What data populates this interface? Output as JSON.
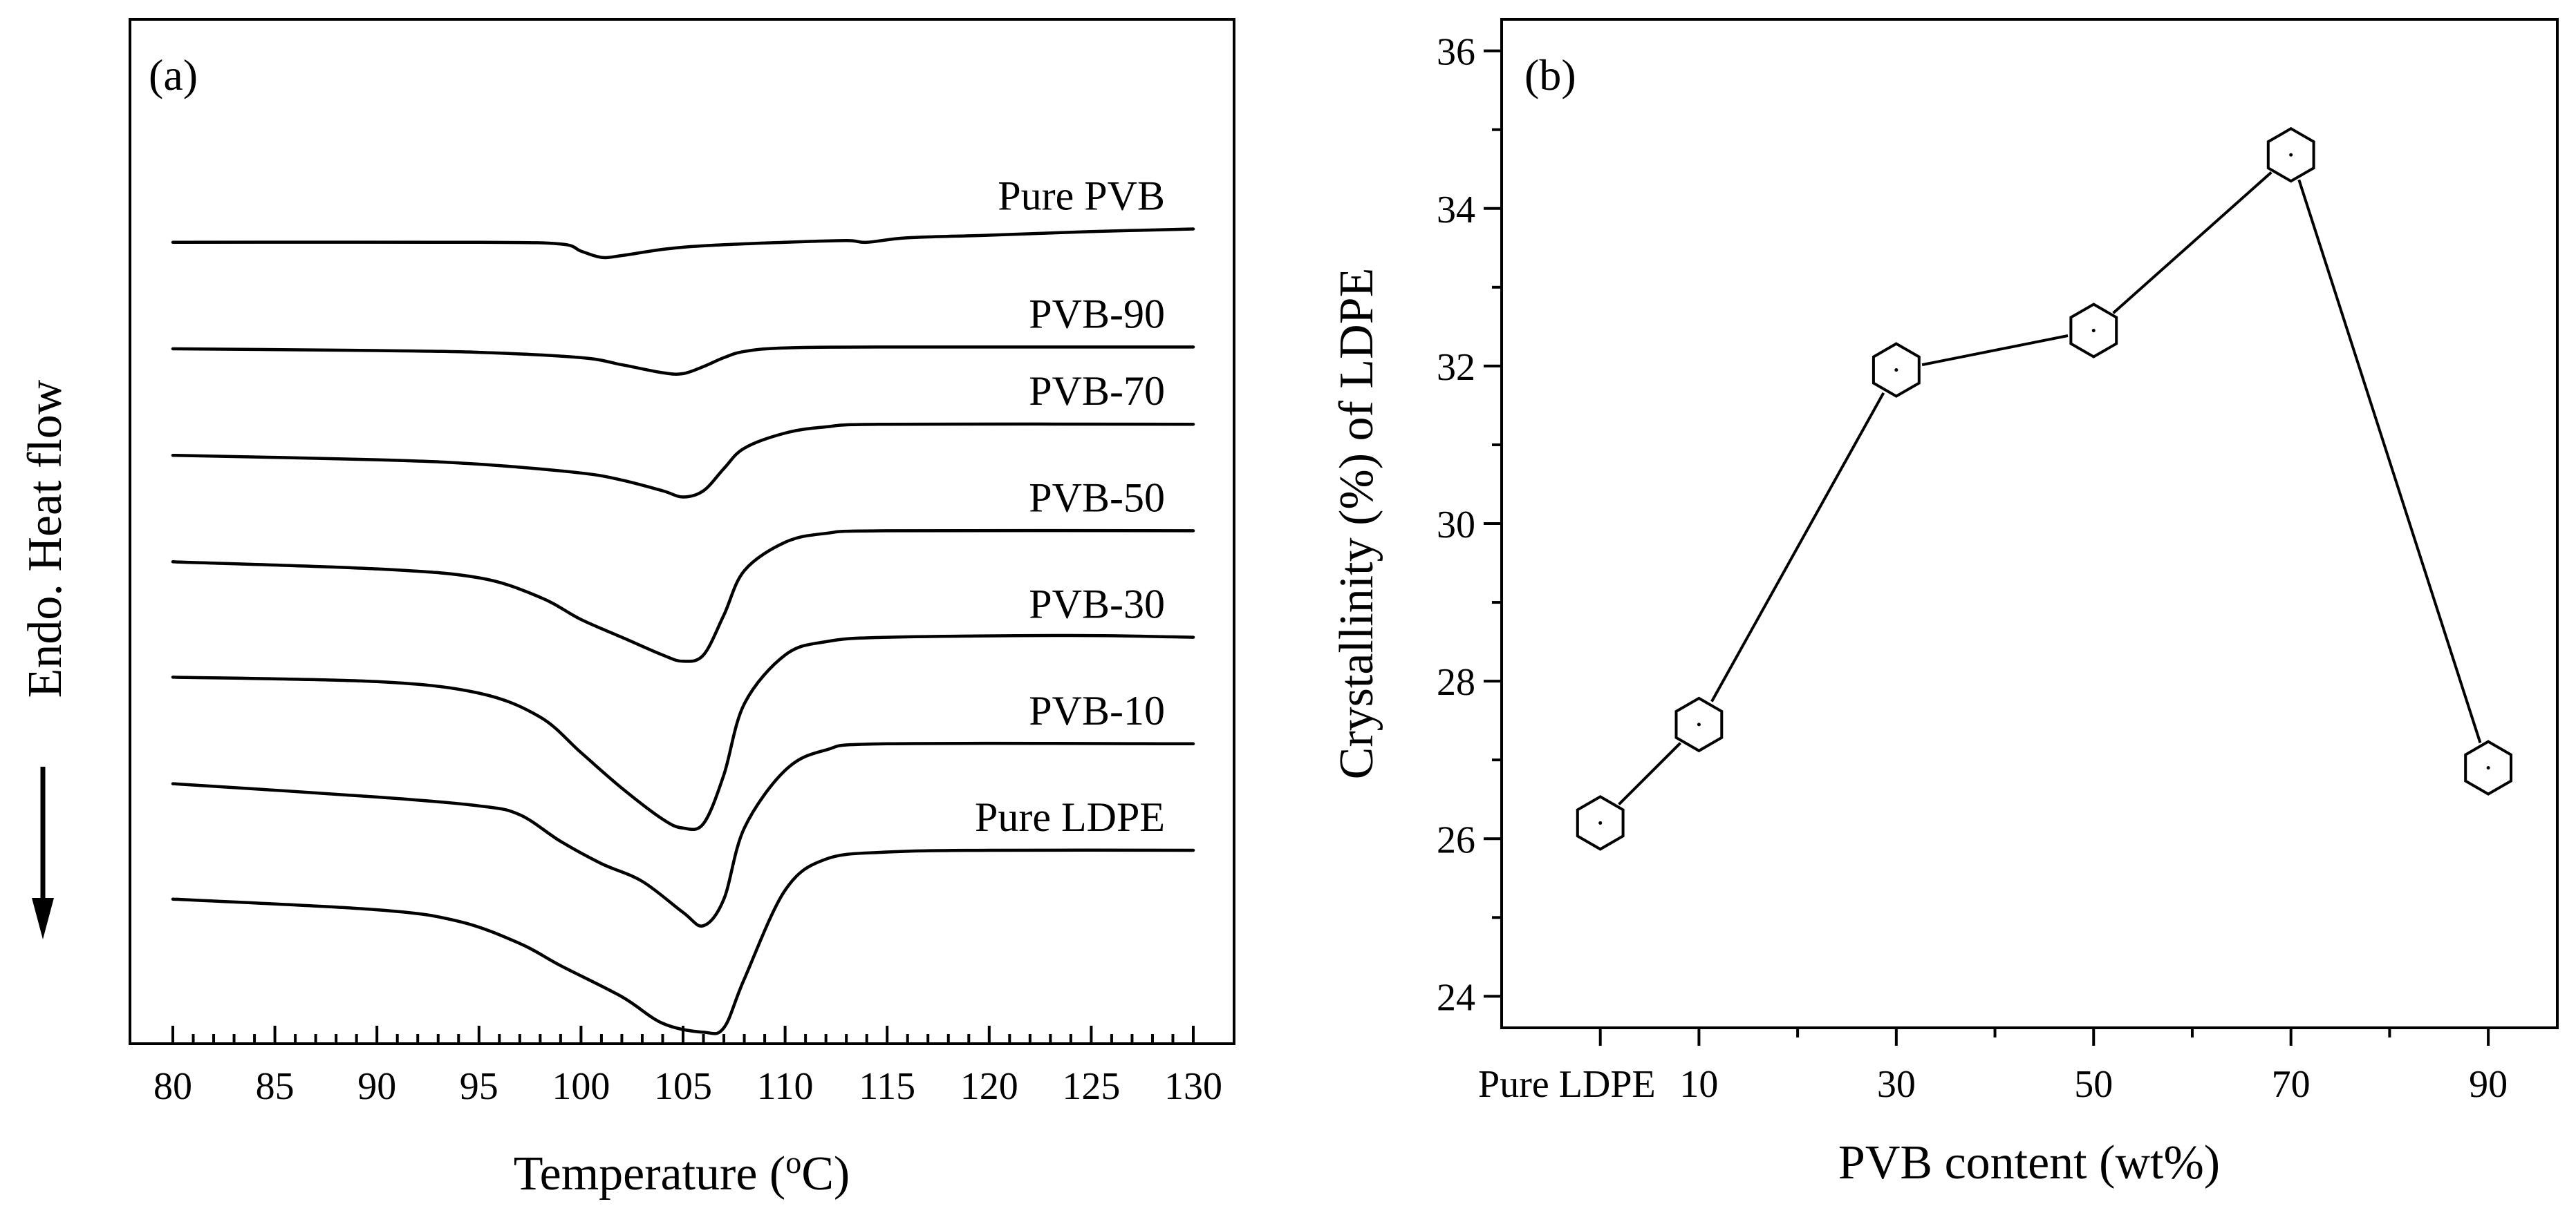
{
  "chart_data": [
    {
      "type": "line",
      "panel_label": "(a)",
      "xlabel": "Temperature (oC)",
      "xlabel_parts": {
        "pre": "Temperature (",
        "sup": "o",
        "post": "C)"
      },
      "ylabel": "Endo. Heat flow",
      "xlim": [
        80,
        130
      ],
      "x_ticks": [
        "80",
        "85",
        "90",
        "95",
        "100",
        "105",
        "110",
        "115",
        "120",
        "125",
        "130"
      ],
      "y_ticks": [],
      "series": [
        {
          "name": "Pure PVB",
          "base": 8.5,
          "end": 8.65,
          "points": [
            [
              80,
              8.5
            ],
            [
              95,
              8.5
            ],
            [
              99,
              8.48
            ],
            [
              100,
              8.4
            ],
            [
              101,
              8.33
            ],
            [
              102,
              8.35
            ],
            [
              104,
              8.42
            ],
            [
              106,
              8.46
            ],
            [
              110,
              8.5
            ],
            [
              113,
              8.52
            ],
            [
              114,
              8.5
            ],
            [
              116,
              8.55
            ],
            [
              120,
              8.58
            ],
            [
              125,
              8.62
            ],
            [
              130,
              8.65
            ]
          ]
        },
        {
          "name": "PVB-90",
          "base": 7.3,
          "end": 7.32,
          "points": [
            [
              80,
              7.3
            ],
            [
              90,
              7.28
            ],
            [
              95,
              7.26
            ],
            [
              100,
              7.2
            ],
            [
              102,
              7.12
            ],
            [
              104,
              7.03
            ],
            [
              105,
              7.02
            ],
            [
              106,
              7.1
            ],
            [
              107,
              7.2
            ],
            [
              108,
              7.27
            ],
            [
              110,
              7.31
            ],
            [
              115,
              7.32
            ],
            [
              130,
              7.32
            ]
          ]
        },
        {
          "name": "PVB-70",
          "base": 6.1,
          "end": 6.45,
          "points": [
            [
              80,
              6.1
            ],
            [
              90,
              6.05
            ],
            [
              95,
              6.0
            ],
            [
              100,
              5.9
            ],
            [
              102,
              5.82
            ],
            [
              104,
              5.7
            ],
            [
              105,
              5.63
            ],
            [
              106,
              5.7
            ],
            [
              107,
              5.95
            ],
            [
              108,
              6.18
            ],
            [
              110,
              6.35
            ],
            [
              112,
              6.42
            ],
            [
              115,
              6.45
            ],
            [
              130,
              6.45
            ]
          ]
        },
        {
          "name": "PVB-50",
          "base": 4.9,
          "end": 5.25,
          "points": [
            [
              80,
              4.9
            ],
            [
              90,
              4.82
            ],
            [
              95,
              4.72
            ],
            [
              98,
              4.5
            ],
            [
              100,
              4.25
            ],
            [
              102,
              4.05
            ],
            [
              104,
              3.85
            ],
            [
              105,
              3.78
            ],
            [
              106,
              3.85
            ],
            [
              107,
              4.3
            ],
            [
              108,
              4.8
            ],
            [
              110,
              5.12
            ],
            [
              112,
              5.22
            ],
            [
              115,
              5.25
            ],
            [
              130,
              5.25
            ]
          ]
        },
        {
          "name": "PVB-30",
          "base": 3.6,
          "end": 4.05,
          "points": [
            [
              80,
              3.6
            ],
            [
              90,
              3.55
            ],
            [
              95,
              3.42
            ],
            [
              98,
              3.15
            ],
            [
              100,
              2.75
            ],
            [
              102,
              2.35
            ],
            [
              104,
              2.0
            ],
            [
              105,
              1.9
            ],
            [
              106,
              1.95
            ],
            [
              107,
              2.5
            ],
            [
              108,
              3.3
            ],
            [
              110,
              3.85
            ],
            [
              112,
              4.0
            ],
            [
              115,
              4.05
            ],
            [
              124,
              4.07
            ],
            [
              130,
              4.05
            ]
          ]
        },
        {
          "name": "PVB-10",
          "base": 2.4,
          "end": 2.85,
          "points": [
            [
              80,
              2.4
            ],
            [
              90,
              2.25
            ],
            [
              95,
              2.15
            ],
            [
              97,
              2.05
            ],
            [
              99,
              1.75
            ],
            [
              101,
              1.5
            ],
            [
              103,
              1.3
            ],
            [
              105,
              0.95
            ],
            [
              106,
              0.8
            ],
            [
              107,
              1.1
            ],
            [
              108,
              1.9
            ],
            [
              110,
              2.55
            ],
            [
              112,
              2.78
            ],
            [
              115,
              2.85
            ],
            [
              130,
              2.85
            ]
          ]
        },
        {
          "name": "Pure LDPE",
          "base": 1.1,
          "end": 1.65,
          "points": [
            [
              80,
              1.1
            ],
            [
              90,
              0.98
            ],
            [
              94,
              0.85
            ],
            [
              97,
              0.6
            ],
            [
              99,
              0.35
            ],
            [
              102,
              0.0
            ],
            [
              104,
              -0.3
            ],
            [
              106,
              -0.4
            ],
            [
              107,
              -0.35
            ],
            [
              108,
              0.2
            ],
            [
              110,
              1.2
            ],
            [
              112,
              1.55
            ],
            [
              115,
              1.63
            ],
            [
              120,
              1.65
            ],
            [
              130,
              1.65
            ]
          ]
        }
      ]
    },
    {
      "type": "line",
      "panel_label": "(b)",
      "xlabel": "PVB content (wt%)",
      "ylabel": "Crystallinity (%) of LDPE",
      "ylim": [
        23.6,
        36.4
      ],
      "y_ticks": [
        24,
        26,
        28,
        30,
        32,
        34,
        36
      ],
      "categories": [
        "Pure LDPE",
        "10",
        "30",
        "50",
        "70",
        "90"
      ],
      "x_positions": [
        0,
        10,
        30,
        50,
        70,
        90
      ],
      "xlim": [
        -10,
        97
      ],
      "values": [
        26.2,
        27.45,
        31.95,
        32.45,
        34.68,
        26.9
      ],
      "marker": "hexagon"
    }
  ]
}
